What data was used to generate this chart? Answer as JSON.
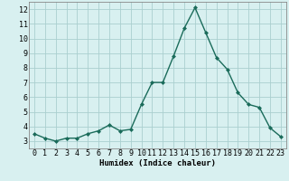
{
  "x": [
    0,
    1,
    2,
    3,
    4,
    5,
    6,
    7,
    8,
    9,
    10,
    11,
    12,
    13,
    14,
    15,
    16,
    17,
    18,
    19,
    20,
    21,
    22,
    23
  ],
  "y": [
    3.5,
    3.2,
    3.0,
    3.2,
    3.2,
    3.5,
    3.7,
    4.1,
    3.7,
    3.8,
    5.5,
    7.0,
    7.0,
    8.8,
    10.7,
    12.1,
    10.4,
    8.7,
    7.9,
    6.3,
    5.5,
    5.3,
    3.9,
    3.3
  ],
  "line_color": "#1a6b5a",
  "marker": "D",
  "marker_size": 2,
  "bg_color": "#d8f0f0",
  "grid_color": "#aacfcf",
  "xlabel": "Humidex (Indice chaleur)",
  "ylim": [
    2.5,
    12.5
  ],
  "xlim": [
    -0.5,
    23.5
  ],
  "yticks": [
    3,
    4,
    5,
    6,
    7,
    8,
    9,
    10,
    11,
    12
  ],
  "xticks": [
    0,
    1,
    2,
    3,
    4,
    5,
    6,
    7,
    8,
    9,
    10,
    11,
    12,
    13,
    14,
    15,
    16,
    17,
    18,
    19,
    20,
    21,
    22,
    23
  ],
  "xlabel_fontsize": 6.5,
  "tick_fontsize": 6,
  "line_width": 1.0
}
